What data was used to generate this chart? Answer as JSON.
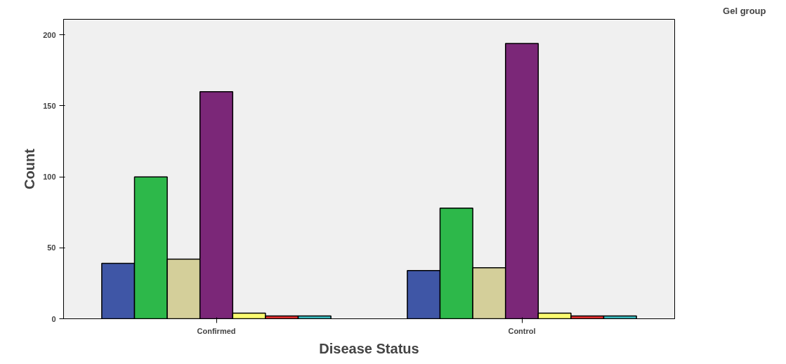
{
  "chart_data": {
    "type": "bar",
    "xlabel": "Disease Status",
    "ylabel": "Count",
    "legend_title": "Gel group",
    "categories": [
      "Confirmed",
      "Control"
    ],
    "series": [
      {
        "color": "#3f56a6",
        "values": [
          39,
          34
        ]
      },
      {
        "color": "#2db84a",
        "values": [
          100,
          78
        ]
      },
      {
        "color": "#d4cf9a",
        "values": [
          42,
          36
        ]
      },
      {
        "color": "#7b2778",
        "values": [
          160,
          194
        ]
      },
      {
        "color": "#fafa70",
        "values": [
          4,
          4
        ]
      },
      {
        "color": "#ee3333",
        "values": [
          2,
          2
        ]
      },
      {
        "color": "#3fc5c9",
        "values": [
          2,
          2
        ]
      }
    ],
    "ylim": [
      0,
      211
    ],
    "yticks": [
      0,
      50,
      100,
      150,
      200
    ],
    "grid": false
  }
}
